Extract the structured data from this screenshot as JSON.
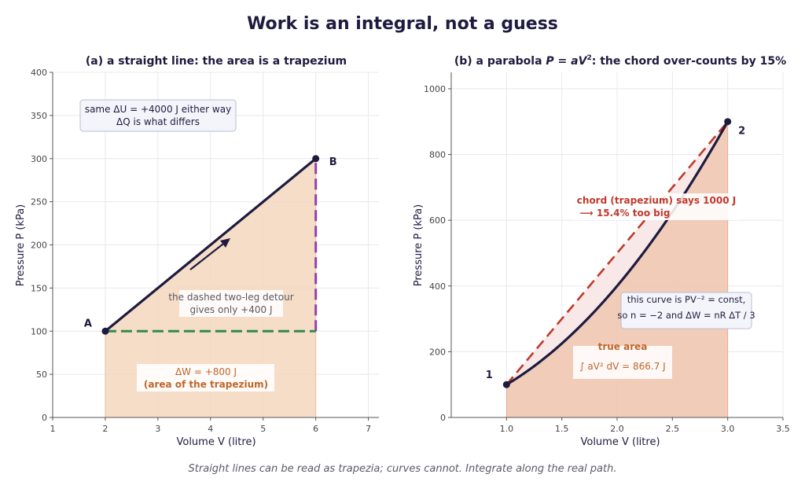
{
  "title": "Work is an integral, not a guess",
  "footer": "Straight lines can be read as trapezia; curves cannot. Integrate along the real path.",
  "colors": {
    "ink": "#1e1b3f",
    "fill": "#f4d7bd",
    "fill_b": "#efc6b1",
    "chord_fill": "#f7e6e6",
    "green": "#2e8b4a",
    "purple": "#8e44ad",
    "chord": "#c0392b",
    "orange": "#c0652a"
  },
  "chart_data": [
    {
      "type": "line",
      "title": "(a) a straight line: the area is a trapezium",
      "xlabel": "Volume V (litre)",
      "ylabel": "Pressure P (kPa)",
      "xlim": [
        1,
        7.2
      ],
      "ylim": [
        0,
        400
      ],
      "xticks": [
        1,
        2,
        3,
        4,
        5,
        6,
        7
      ],
      "yticks": [
        0,
        50,
        100,
        150,
        200,
        250,
        300,
        350,
        400
      ],
      "grid": true,
      "points": [
        {
          "label": "A",
          "x": 2,
          "y": 100
        },
        {
          "label": "B",
          "x": 6,
          "y": 300
        }
      ],
      "series": [
        {
          "x": [
            2,
            6
          ],
          "y": [
            100,
            300
          ],
          "style": "solid"
        },
        {
          "x": [
            2,
            6
          ],
          "y": [
            100,
            100
          ],
          "style": "dashed-green"
        },
        {
          "x": [
            6,
            6
          ],
          "y": [
            100,
            300
          ],
          "style": "dashed-purple"
        }
      ],
      "annotations": {
        "box_line1": "same ΔU = +4000 J either way",
        "box_line2": "ΔQ is what differs",
        "detour_line1": "the dashed two-leg detour",
        "detour_line2": "gives only +400 J",
        "work_line1": "ΔW = +800 J",
        "work_line2": "(area of the trapezium)"
      }
    },
    {
      "type": "line",
      "title": "(b) a parabola P = aV²: the chord over-counts by 15%",
      "xlabel": "Volume V (litre)",
      "ylabel": "Pressure P (kPa)",
      "xlim": [
        0.5,
        3.5
      ],
      "ylim": [
        0,
        1050
      ],
      "xticks": [
        1.0,
        1.5,
        2.0,
        2.5,
        3.0,
        3.5
      ],
      "xtick_labels": [
        "1.0",
        "1.5",
        "2.0",
        "2.5",
        "3.0",
        "3.5"
      ],
      "yticks": [
        0,
        200,
        400,
        600,
        800,
        1000
      ],
      "grid": true,
      "points": [
        {
          "label": "1",
          "x": 1,
          "y": 100
        },
        {
          "label": "2",
          "x": 3,
          "y": 900
        }
      ],
      "curve": {
        "a": 100,
        "x_start": 1,
        "x_end": 3
      },
      "chord": {
        "x": [
          1,
          3
        ],
        "y": [
          100,
          900
        ]
      },
      "annotations": {
        "chord_line1": "chord (trapezium) says 1000 J",
        "chord_line2": "⟶  15.4% too big",
        "note_line1": "this curve is PV⁻² =  const,",
        "note_line2": "so n = −2 and ΔW = nR ΔT / 3",
        "true_line1": "true area",
        "true_line2": "∫ aV² dV = 866.7 J"
      }
    }
  ]
}
